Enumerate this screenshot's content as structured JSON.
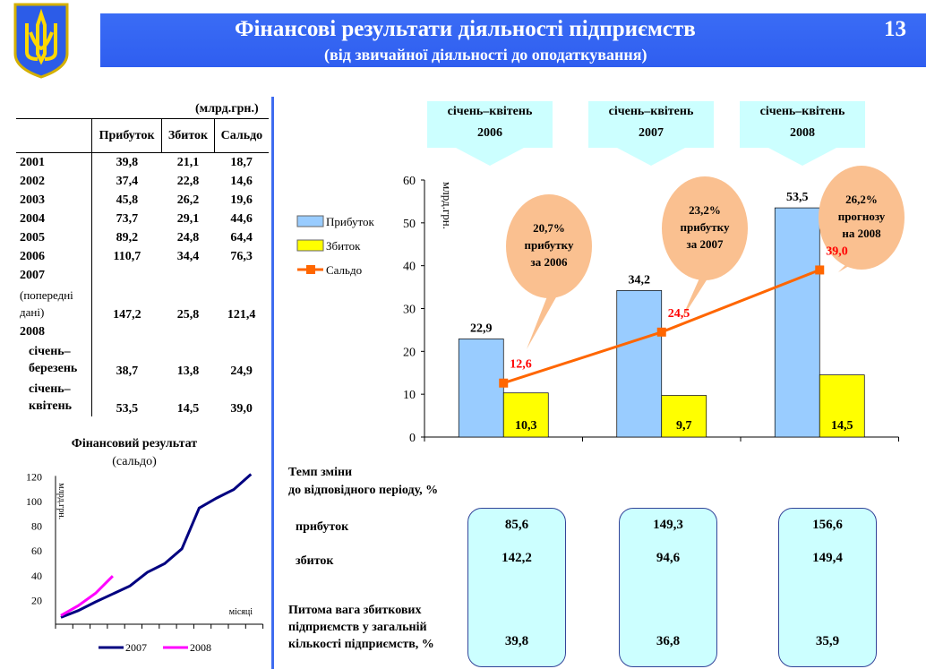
{
  "header": {
    "title": "Фінансові результати діяльності підприємств",
    "subtitle": "(від звичайної діяльності до оподаткування)",
    "page_number": "13"
  },
  "table": {
    "unit": "(млрд.грн.)",
    "columns": [
      "Прибуток",
      "Збиток",
      "Сальдо"
    ],
    "rows": [
      {
        "label": "2001",
        "values": [
          "39,8",
          "21,1",
          "18,7"
        ]
      },
      {
        "label": "2002",
        "values": [
          "37,4",
          "22,8",
          "14,6"
        ]
      },
      {
        "label": "2003",
        "values": [
          "45,8",
          "26,2",
          "19,6"
        ]
      },
      {
        "label": "2004",
        "values": [
          "73,7",
          "29,1",
          "44,6"
        ]
      },
      {
        "label": "2005",
        "values": [
          "89,2",
          "24,8",
          "64,4"
        ]
      },
      {
        "label": "2006",
        "values": [
          "110,7",
          "34,4",
          "76,3"
        ]
      },
      {
        "label": "2007",
        "sublabel": "(попередні дані)",
        "values": [
          "147,2",
          "25,8",
          "121,4"
        ]
      },
      {
        "label": "2008",
        "sublabel": "січень– березень",
        "values": [
          "38,7",
          "13,8",
          "24,9"
        ]
      },
      {
        "label": "",
        "sublabel": "січень– квітень",
        "values": [
          "53,5",
          "14,5",
          "39,0"
        ]
      }
    ]
  },
  "periods": [
    {
      "line1": "січень–квітень",
      "line2": "2006"
    },
    {
      "line1": "січень–квітень",
      "line2": "2007"
    },
    {
      "line1": "січень–квітень",
      "line2": "2008"
    }
  ],
  "bubbles": [
    {
      "l1": "20,7%",
      "l2": "прибутку",
      "l3": "за  2006"
    },
    {
      "l1": "23,2%",
      "l2": "прибутку",
      "l3": "за  2007"
    },
    {
      "l1": "26,2%",
      "l2": "прогнозу",
      "l3": "на  2008"
    }
  ],
  "rates": {
    "title1": "Темп зміни",
    "title2": "до відповідного періоду, %",
    "profit_label": "прибуток",
    "loss_label": "збиток",
    "share1": "Питома вага збиткових",
    "share2": "підприємств у загальній",
    "share3": "кількості підприємств, %",
    "columns": [
      {
        "profit": "85,6",
        "loss": "142,2",
        "share": "39,8"
      },
      {
        "profit": "149,3",
        "loss": "94,6",
        "share": "36,8"
      },
      {
        "profit": "156,6",
        "loss": "149,4",
        "share": "35,9"
      }
    ]
  },
  "chart_data": [
    {
      "type": "bar",
      "title": "",
      "ylabel": "млрд.грн.",
      "ylim": [
        0,
        60
      ],
      "yticks": [
        "0",
        "10",
        "20",
        "30",
        "40",
        "50",
        "60"
      ],
      "categories": [
        "2006",
        "2007",
        "2008"
      ],
      "series": [
        {
          "name": "Прибуток",
          "type": "bar",
          "color": "#99ccff",
          "values": [
            22.9,
            34.2,
            53.5
          ],
          "labels": [
            "22,9",
            "34,2",
            "53,5"
          ]
        },
        {
          "name": "Збиток",
          "type": "bar",
          "color": "#ffff00",
          "values": [
            10.3,
            9.7,
            14.5
          ],
          "labels": [
            "10,3",
            "9,7",
            "14,5"
          ]
        },
        {
          "name": "Сальдо",
          "type": "line",
          "color": "#ff6600",
          "values": [
            12.6,
            24.5,
            39.0
          ],
          "labels": [
            "12,6",
            "24,5",
            "39,0"
          ]
        }
      ]
    },
    {
      "type": "line",
      "title": "Фінансовий  результат",
      "subtitle": "(сальдо)",
      "ylabel": "млрд.грн.",
      "xlabel": "місяці",
      "ylim": [
        0,
        120
      ],
      "yticks": [
        "20",
        "40",
        "60",
        "80",
        "100",
        "120"
      ],
      "series": [
        {
          "name": "2007",
          "color": "#000080",
          "values": [
            5.5,
            11,
            18,
            24.5,
            31,
            42,
            49,
            61,
            94,
            102,
            109,
            121.4
          ]
        },
        {
          "name": "2008",
          "color": "#ff00ff",
          "values": [
            7,
            15,
            25,
            39
          ]
        }
      ]
    }
  ]
}
